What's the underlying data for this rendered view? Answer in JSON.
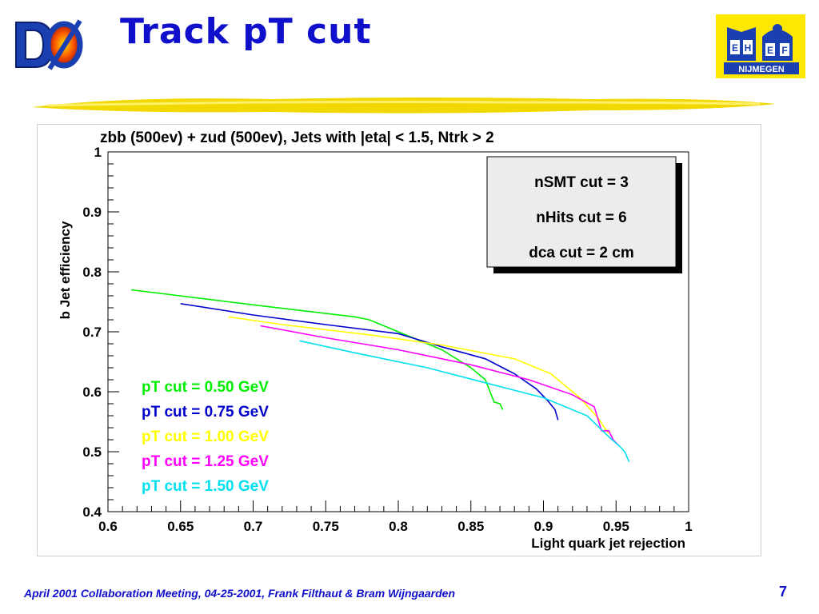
{
  "slide": {
    "title": "Track pT cut",
    "footer": "April 2001 Collaboration Meeting, 04-25-2001, Frank Filthaut & Bram Wijngaarden",
    "page_number": "7",
    "left_logo_text": "DØ",
    "right_logo_text": "NIJMEGEN",
    "right_logo_letters": [
      "E",
      "H",
      "E",
      "F"
    ],
    "colors": {
      "title": "#1010cc",
      "banner": "#f0d800",
      "logo_bg": "#ffe800"
    }
  },
  "chart_data": {
    "type": "line",
    "title": "zbb (500ev) + zud (500ev), Jets with |eta| < 1.5, Ntrk > 2",
    "xlabel": "Light quark jet rejection",
    "ylabel": "b Jet efficiency",
    "xlim": [
      0.6,
      1.0
    ],
    "ylim": [
      0.4,
      1.0
    ],
    "x_ticks": [
      "0.6",
      "0.65",
      "0.7",
      "0.75",
      "0.8",
      "0.85",
      "0.9",
      "0.95",
      "1"
    ],
    "y_ticks": [
      "0.4",
      "0.5",
      "0.6",
      "0.7",
      "0.8",
      "0.9",
      "1"
    ],
    "grid": false,
    "stats_box": [
      "nSMT cut = 3",
      "nHits cut = 6",
      "dca cut = 2 cm"
    ],
    "series": [
      {
        "name": "pT cut = 0.50 GeV",
        "color": "#00ee00",
        "x": [
          0.616,
          0.7,
          0.77,
          0.78,
          0.8,
          0.83,
          0.85,
          0.86,
          0.864,
          0.866,
          0.87,
          0.872
        ],
        "y": [
          0.77,
          0.745,
          0.725,
          0.72,
          0.7,
          0.67,
          0.64,
          0.62,
          0.595,
          0.583,
          0.58,
          0.57
        ]
      },
      {
        "name": "pT cut = 0.75 GeV",
        "color": "#0000cc",
        "x": [
          0.65,
          0.7,
          0.75,
          0.8,
          0.83,
          0.86,
          0.88,
          0.895,
          0.903,
          0.908,
          0.91
        ],
        "y": [
          0.747,
          0.728,
          0.712,
          0.697,
          0.675,
          0.655,
          0.63,
          0.605,
          0.585,
          0.57,
          0.553
        ]
      },
      {
        "name": "pT cut = 1.00 GeV",
        "color": "#ffff00",
        "x": [
          0.683,
          0.72,
          0.78,
          0.83,
          0.88,
          0.905,
          0.925,
          0.938,
          0.942,
          0.945
        ],
        "y": [
          0.725,
          0.712,
          0.695,
          0.678,
          0.655,
          0.63,
          0.59,
          0.555,
          0.54,
          0.53
        ]
      },
      {
        "name": "pT cut = 1.25 GeV",
        "color": "#ff00ff",
        "x": [
          0.705,
          0.75,
          0.8,
          0.85,
          0.89,
          0.92,
          0.935,
          0.94,
          0.945,
          0.948,
          0.952
        ],
        "y": [
          0.71,
          0.69,
          0.67,
          0.645,
          0.62,
          0.595,
          0.575,
          0.535,
          0.535,
          0.52,
          0.51
        ]
      },
      {
        "name": "pT cut = 1.50 GeV",
        "color": "#00e0f0",
        "x": [
          0.732,
          0.77,
          0.82,
          0.86,
          0.9,
          0.93,
          0.945,
          0.952,
          0.956,
          0.959
        ],
        "y": [
          0.685,
          0.665,
          0.64,
          0.615,
          0.59,
          0.56,
          0.525,
          0.51,
          0.5,
          0.483
        ]
      }
    ]
  }
}
